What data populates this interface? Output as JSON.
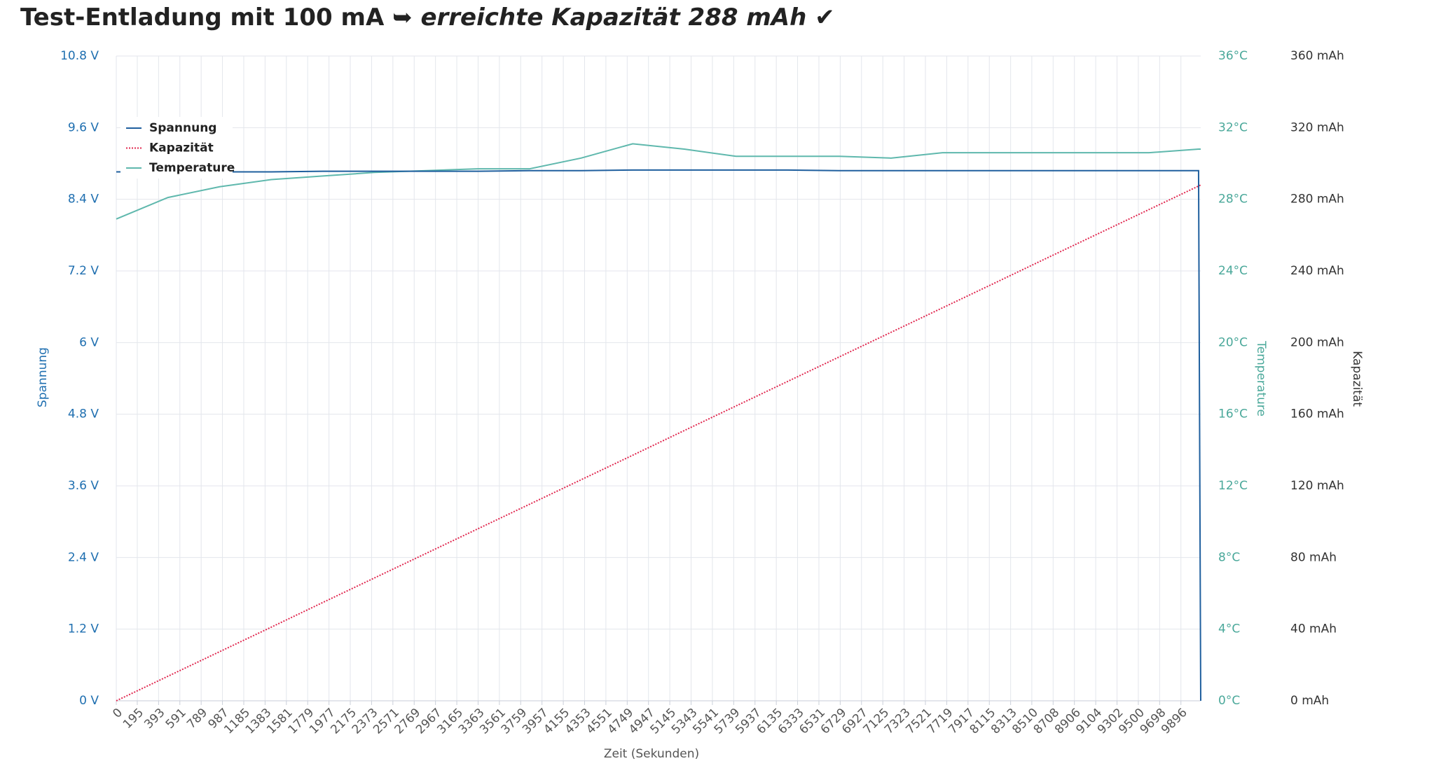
{
  "chart_data": {
    "type": "line",
    "title": "Test-Entladung mit 100 mA ➥",
    "title_emphasis": "erreichte Kapazität 288 mAh ✔",
    "x_label": "Zeit (Sekunden)",
    "y_label": "Spannung",
    "y2_label": "Temperature",
    "y3_label": "Kapazität",
    "legend": "upper left",
    "grid": true,
    "xlim": [
      0,
      10080
    ],
    "xticks": [
      0,
      195,
      393,
      591,
      789,
      987,
      1185,
      1383,
      1581,
      1779,
      1977,
      2175,
      2373,
      2571,
      2769,
      2967,
      3165,
      3363,
      3561,
      3759,
      3957,
      4155,
      4353,
      4551,
      4749,
      4947,
      5145,
      5343,
      5541,
      5739,
      5937,
      6135,
      6333,
      6531,
      6729,
      6927,
      7125,
      7323,
      7521,
      7719,
      7917,
      8115,
      8313,
      8510,
      8708,
      8906,
      9104,
      9302,
      9500,
      9698,
      9896
    ],
    "ylim": [
      0,
      10.8
    ],
    "yticks": [
      {
        "value": 0,
        "label": "0 V"
      },
      {
        "value": 1.2,
        "label": "1.2 V"
      },
      {
        "value": 2.4,
        "label": "2.4 V"
      },
      {
        "value": 3.6,
        "label": "3.6 V"
      },
      {
        "value": 4.8,
        "label": "4.8 V"
      },
      {
        "value": 6,
        "label": "6 V"
      },
      {
        "value": 7.2,
        "label": "7.2 V"
      },
      {
        "value": 8.4,
        "label": "8.4 V"
      },
      {
        "value": 9.6,
        "label": "9.6 V"
      },
      {
        "value": 10.8,
        "label": "10.8 V"
      }
    ],
    "y2lim": [
      0,
      36
    ],
    "y2ticks": [
      {
        "value": 0,
        "label": "0°C"
      },
      {
        "value": 4,
        "label": "4°C"
      },
      {
        "value": 8,
        "label": "8°C"
      },
      {
        "value": 12,
        "label": "12°C"
      },
      {
        "value": 16,
        "label": "16°C"
      },
      {
        "value": 20,
        "label": "20°C"
      },
      {
        "value": 24,
        "label": "24°C"
      },
      {
        "value": 28,
        "label": "28°C"
      },
      {
        "value": 32,
        "label": "32°C"
      },
      {
        "value": 36,
        "label": "36°C"
      }
    ],
    "y3lim": [
      0,
      360
    ],
    "y3ticks": [
      {
        "value": 0,
        "label": "0 mAh"
      },
      {
        "value": 40,
        "label": "40 mAh"
      },
      {
        "value": 80,
        "label": "80 mAh"
      },
      {
        "value": 120,
        "label": "120 mAh"
      },
      {
        "value": 160,
        "label": "160 mAh"
      },
      {
        "value": 200,
        "label": "200 mAh"
      },
      {
        "value": 240,
        "label": "240 mAh"
      },
      {
        "value": 280,
        "label": "280 mAh"
      },
      {
        "value": 320,
        "label": "320 mAh"
      },
      {
        "value": 360,
        "label": "360 mAh"
      }
    ],
    "x": [
      0,
      480,
      960,
      1440,
      1920,
      2400,
      2880,
      3360,
      3840,
      4320,
      4800,
      5280,
      5760,
      6240,
      6720,
      7200,
      7680,
      8160,
      8640,
      9120,
      9600,
      10060,
      10080
    ],
    "series": [
      {
        "name": "Spannung",
        "color": "#1f5f9e",
        "line_style": "solid",
        "axis": "y",
        "values": [
          8.86,
          8.86,
          8.86,
          8.86,
          8.87,
          8.87,
          8.87,
          8.87,
          8.88,
          8.88,
          8.89,
          8.89,
          8.89,
          8.89,
          8.88,
          8.88,
          8.88,
          8.88,
          8.88,
          8.88,
          8.88,
          8.88,
          0
        ]
      },
      {
        "name": "Kapazität",
        "color": "#e0284f",
        "line_style": "dotted",
        "axis": "y3",
        "values": [
          0,
          13.7,
          27.4,
          41.1,
          54.9,
          68.6,
          82.3,
          96,
          109.7,
          123.4,
          137.1,
          150.9,
          164.6,
          178.3,
          192,
          205.7,
          219.4,
          233.1,
          246.9,
          260.6,
          274.3,
          287.4,
          288
        ]
      },
      {
        "name": "Temperature",
        "color": "#5fb8ad",
        "line_style": "solid",
        "axis": "y2",
        "values": [
          26.9,
          28.1,
          28.7,
          29.1,
          29.3,
          29.5,
          29.6,
          29.7,
          29.7,
          30.3,
          31.1,
          30.8,
          30.4,
          30.4,
          30.4,
          30.3,
          30.6,
          30.6,
          30.6,
          30.6,
          30.6,
          30.8,
          30.8
        ]
      }
    ]
  }
}
